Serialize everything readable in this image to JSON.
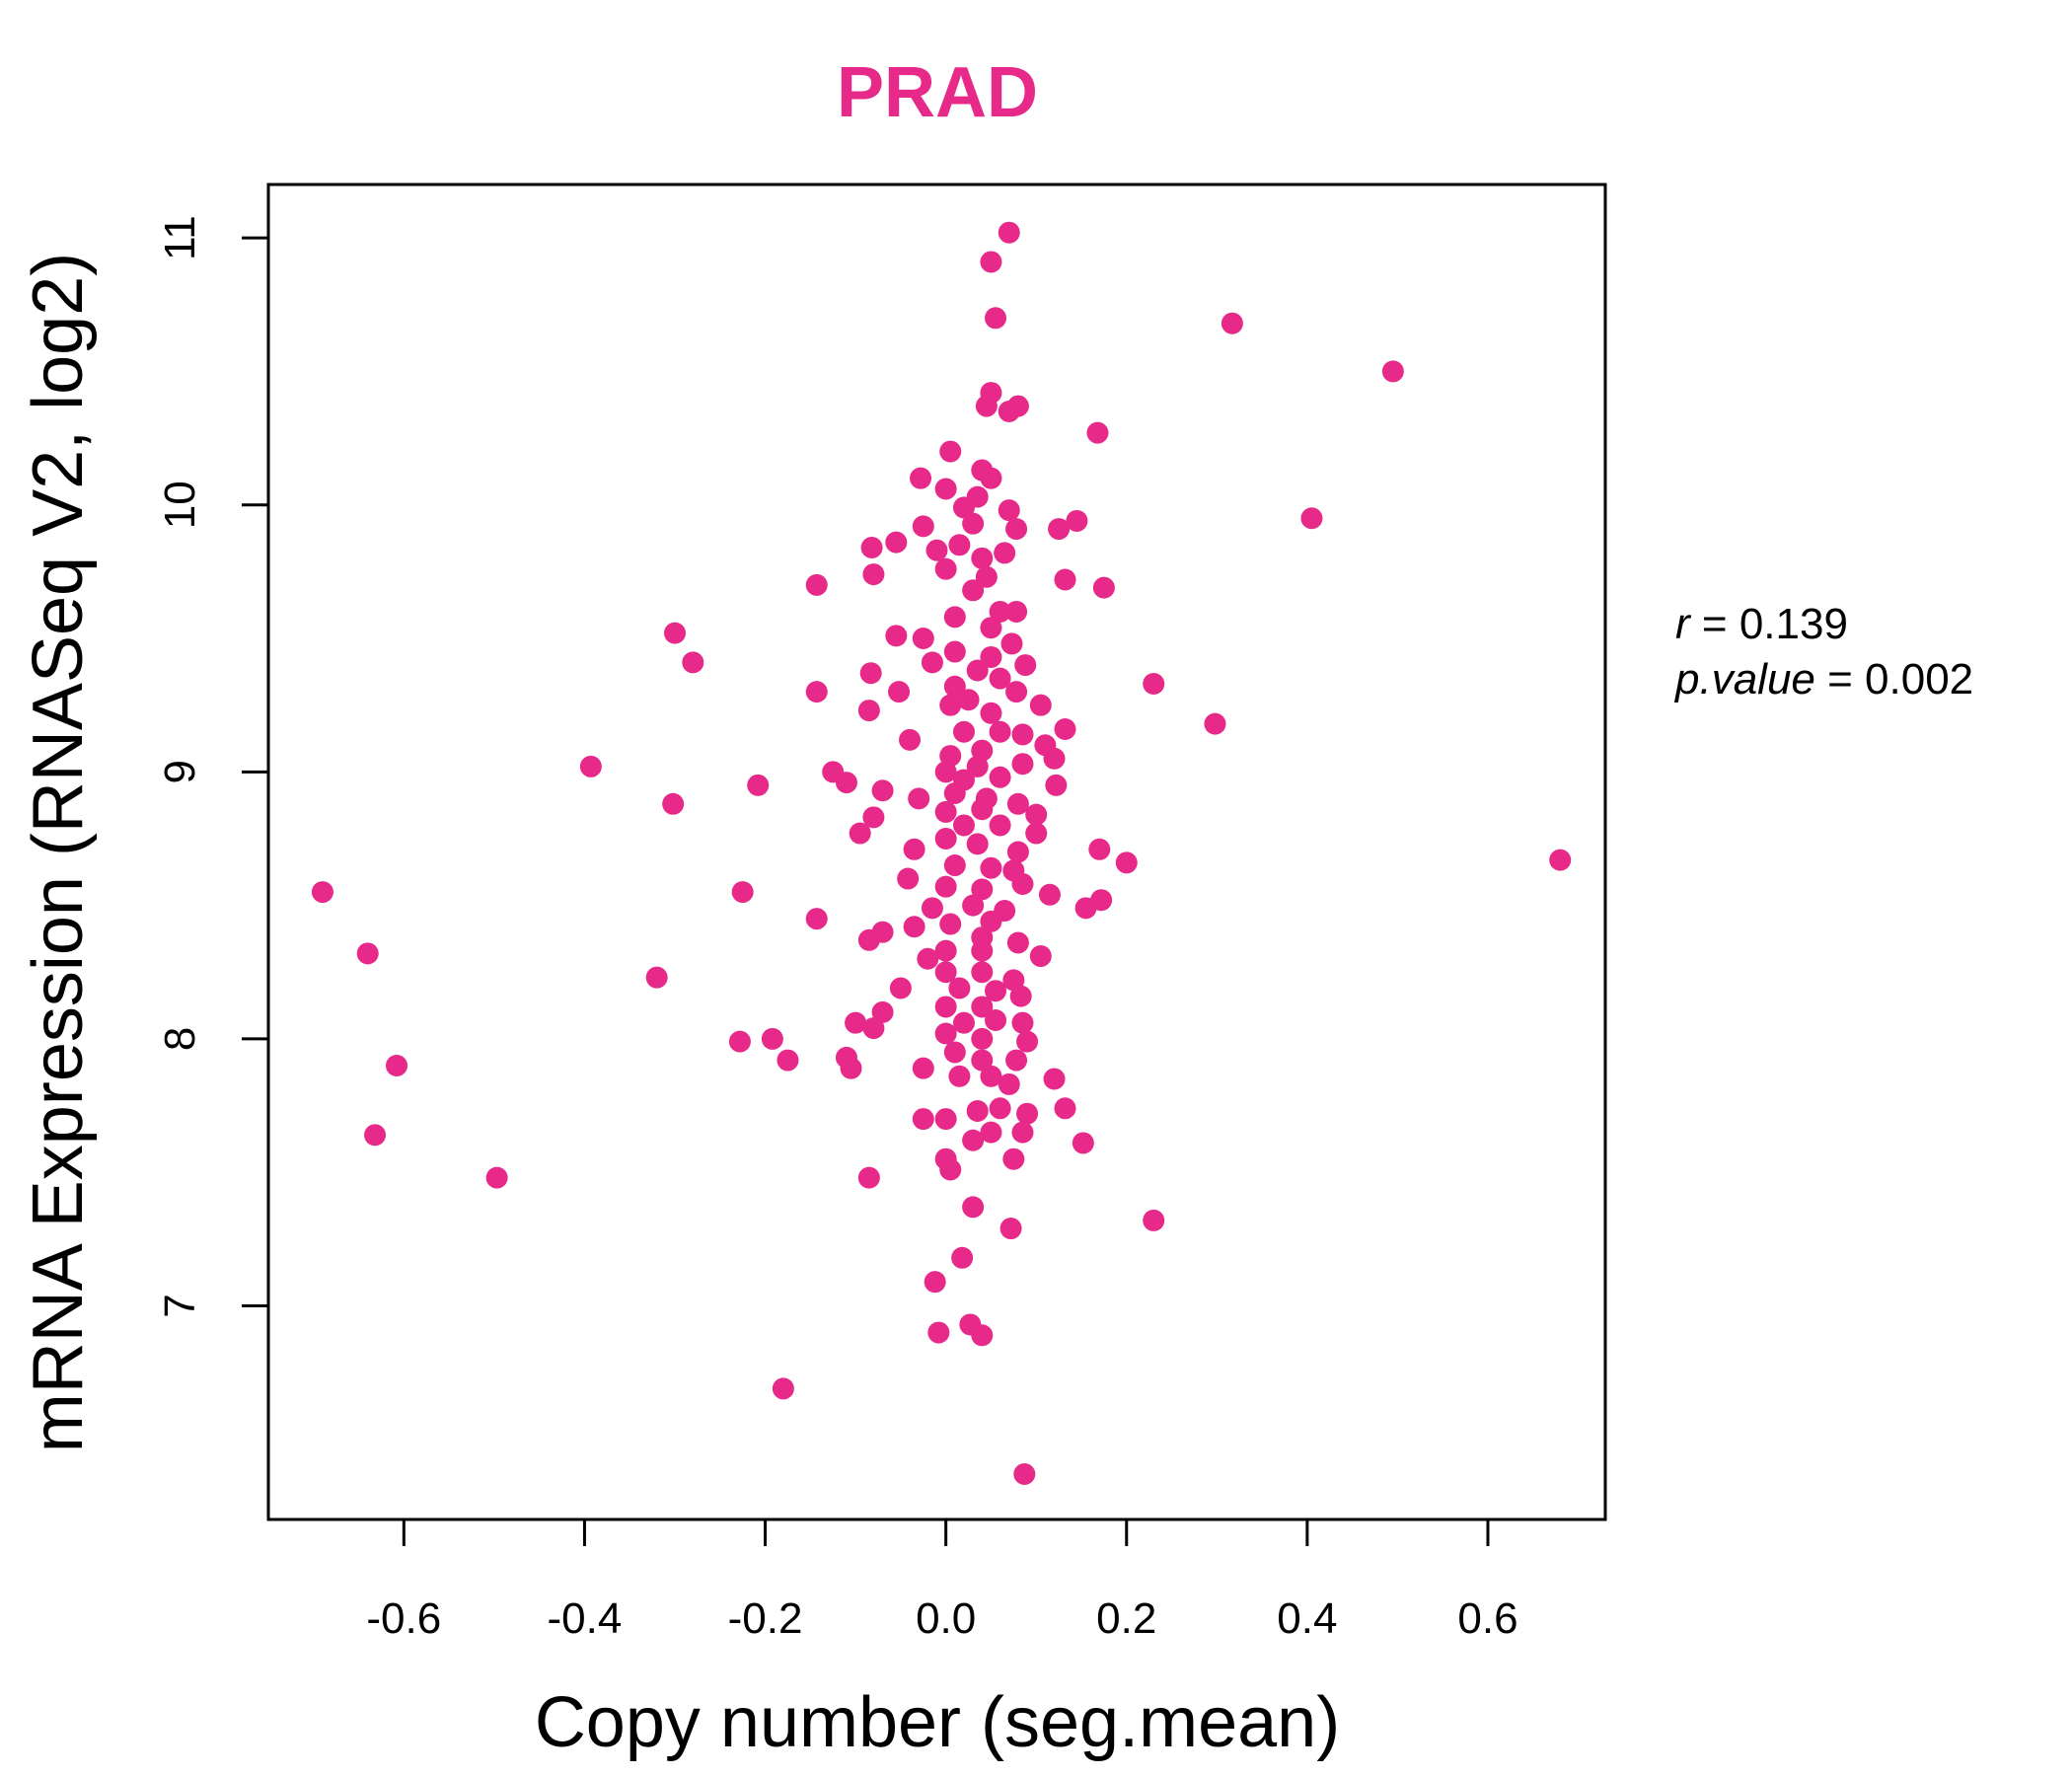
{
  "chart_data": {
    "type": "scatter",
    "title": "PRAD",
    "xlabel": "Copy number (seg.mean)",
    "ylabel": "mRNA Expression (RNASeq V2, log2)",
    "xlim": [
      -0.75,
      0.73
    ],
    "ylim": [
      6.2,
      11.2
    ],
    "xticks": [
      -0.6,
      -0.4,
      -0.2,
      0.0,
      0.2,
      0.4,
      0.6
    ],
    "xtick_labels": [
      "-0.6",
      "-0.4",
      "-0.2",
      "0.0",
      "0.2",
      "0.4",
      "0.6"
    ],
    "yticks": [
      7,
      8,
      9,
      10,
      11
    ],
    "ytick_labels": [
      "7",
      "8",
      "9",
      "10",
      "11"
    ],
    "grid": false,
    "point_color": "#E7298A",
    "stats": {
      "r_label": "r",
      "r_value": "0.139",
      "p_label": "p.value",
      "p_value": "0.002"
    },
    "series": [
      {
        "points": [
          [
            0.07,
            11.02
          ],
          [
            0.05,
            10.91
          ],
          [
            0.055,
            10.7
          ],
          [
            0.317,
            10.68
          ],
          [
            0.495,
            10.5
          ],
          [
            0.05,
            10.42
          ],
          [
            0.045,
            10.37
          ],
          [
            0.08,
            10.37
          ],
          [
            0.07,
            10.35
          ],
          [
            0.168,
            10.27
          ],
          [
            0.005,
            10.2
          ],
          [
            0.04,
            10.13
          ],
          [
            -0.028,
            10.1
          ],
          [
            0.05,
            10.1
          ],
          [
            0.0,
            10.06
          ],
          [
            0.035,
            10.03
          ],
          [
            0.02,
            9.99
          ],
          [
            0.07,
            9.98
          ],
          [
            0.405,
            9.95
          ],
          [
            0.145,
            9.94
          ],
          [
            -0.025,
            9.92
          ],
          [
            0.03,
            9.93
          ],
          [
            0.078,
            9.91
          ],
          [
            0.125,
            9.91
          ],
          [
            -0.055,
            9.86
          ],
          [
            -0.082,
            9.84
          ],
          [
            -0.01,
            9.83
          ],
          [
            0.015,
            9.85
          ],
          [
            0.065,
            9.82
          ],
          [
            0.04,
            9.8
          ],
          [
            -0.08,
            9.74
          ],
          [
            0.0,
            9.76
          ],
          [
            0.045,
            9.73
          ],
          [
            0.132,
            9.72
          ],
          [
            0.175,
            9.69
          ],
          [
            -0.143,
            9.7
          ],
          [
            0.03,
            9.68
          ],
          [
            0.06,
            9.6
          ],
          [
            0.078,
            9.6
          ],
          [
            0.01,
            9.58
          ],
          [
            0.05,
            9.54
          ],
          [
            -0.3,
            9.52
          ],
          [
            -0.055,
            9.51
          ],
          [
            -0.025,
            9.5
          ],
          [
            0.073,
            9.48
          ],
          [
            0.01,
            9.45
          ],
          [
            0.05,
            9.43
          ],
          [
            0.088,
            9.4
          ],
          [
            -0.28,
            9.41
          ],
          [
            -0.015,
            9.41
          ],
          [
            -0.083,
            9.37
          ],
          [
            0.035,
            9.38
          ],
          [
            0.06,
            9.35
          ],
          [
            0.23,
            9.33
          ],
          [
            -0.143,
            9.3
          ],
          [
            -0.052,
            9.3
          ],
          [
            0.01,
            9.32
          ],
          [
            0.078,
            9.3
          ],
          [
            0.025,
            9.27
          ],
          [
            0.105,
            9.25
          ],
          [
            -0.085,
            9.23
          ],
          [
            0.005,
            9.25
          ],
          [
            0.05,
            9.22
          ],
          [
            0.298,
            9.18
          ],
          [
            -0.04,
            9.12
          ],
          [
            0.02,
            9.15
          ],
          [
            0.06,
            9.15
          ],
          [
            0.132,
            9.16
          ],
          [
            0.085,
            9.14
          ],
          [
            0.11,
            9.1
          ],
          [
            0.005,
            9.06
          ],
          [
            0.04,
            9.08
          ],
          [
            0.12,
            9.05
          ],
          [
            -0.393,
            9.02
          ],
          [
            -0.125,
            9.0
          ],
          [
            0.0,
            9.0
          ],
          [
            0.035,
            9.02
          ],
          [
            0.085,
            9.03
          ],
          [
            -0.208,
            8.95
          ],
          [
            -0.11,
            8.96
          ],
          [
            -0.07,
            8.93
          ],
          [
            0.02,
            8.97
          ],
          [
            0.06,
            8.98
          ],
          [
            0.122,
            8.95
          ],
          [
            -0.302,
            8.88
          ],
          [
            -0.03,
            8.9
          ],
          [
            0.01,
            8.92
          ],
          [
            0.045,
            8.9
          ],
          [
            0.08,
            8.88
          ],
          [
            -0.08,
            8.83
          ],
          [
            0.0,
            8.85
          ],
          [
            0.04,
            8.86
          ],
          [
            0.1,
            8.84
          ],
          [
            -0.095,
            8.77
          ],
          [
            0.02,
            8.8
          ],
          [
            0.06,
            8.8
          ],
          [
            0.1,
            8.77
          ],
          [
            -0.035,
            8.71
          ],
          [
            0.0,
            8.75
          ],
          [
            0.035,
            8.73
          ],
          [
            0.17,
            8.71
          ],
          [
            0.08,
            8.7
          ],
          [
            -0.042,
            8.6
          ],
          [
            0.01,
            8.65
          ],
          [
            0.05,
            8.64
          ],
          [
            0.075,
            8.63
          ],
          [
            0.2,
            8.66
          ],
          [
            0.68,
            8.67
          ],
          [
            -0.69,
            8.55
          ],
          [
            -0.225,
            8.55
          ],
          [
            0.0,
            8.57
          ],
          [
            0.04,
            8.56
          ],
          [
            0.085,
            8.58
          ],
          [
            0.115,
            8.54
          ],
          [
            0.172,
            8.52
          ],
          [
            0.155,
            8.49
          ],
          [
            -0.015,
            8.49
          ],
          [
            0.03,
            8.5
          ],
          [
            0.065,
            8.48
          ],
          [
            -0.143,
            8.45
          ],
          [
            -0.035,
            8.42
          ],
          [
            0.005,
            8.43
          ],
          [
            0.05,
            8.44
          ],
          [
            -0.07,
            8.4
          ],
          [
            -0.085,
            8.37
          ],
          [
            0.04,
            8.38
          ],
          [
            0.08,
            8.36
          ],
          [
            -0.64,
            8.32
          ],
          [
            0.0,
            8.33
          ],
          [
            0.04,
            8.33
          ],
          [
            0.105,
            8.31
          ],
          [
            -0.02,
            8.3
          ],
          [
            -0.32,
            8.23
          ],
          [
            0.0,
            8.25
          ],
          [
            0.04,
            8.25
          ],
          [
            0.075,
            8.22
          ],
          [
            -0.05,
            8.19
          ],
          [
            0.015,
            8.19
          ],
          [
            0.055,
            8.18
          ],
          [
            0.083,
            8.16
          ],
          [
            -0.07,
            8.1
          ],
          [
            0.0,
            8.12
          ],
          [
            0.04,
            8.12
          ],
          [
            -0.1,
            8.06
          ],
          [
            0.02,
            8.06
          ],
          [
            0.055,
            8.07
          ],
          [
            0.085,
            8.06
          ],
          [
            -0.08,
            8.04
          ],
          [
            -0.192,
            8.0
          ],
          [
            -0.228,
            7.99
          ],
          [
            0.0,
            8.02
          ],
          [
            0.04,
            8.0
          ],
          [
            0.09,
            7.99
          ],
          [
            -0.608,
            7.9
          ],
          [
            -0.175,
            7.92
          ],
          [
            -0.11,
            7.93
          ],
          [
            -0.105,
            7.89
          ],
          [
            -0.025,
            7.89
          ],
          [
            0.01,
            7.95
          ],
          [
            0.04,
            7.92
          ],
          [
            0.078,
            7.92
          ],
          [
            0.015,
            7.86
          ],
          [
            0.05,
            7.86
          ],
          [
            0.12,
            7.85
          ],
          [
            0.07,
            7.83
          ],
          [
            -0.025,
            7.7
          ],
          [
            0.0,
            7.7
          ],
          [
            0.035,
            7.73
          ],
          [
            0.06,
            7.74
          ],
          [
            0.09,
            7.72
          ],
          [
            0.132,
            7.74
          ],
          [
            -0.632,
            7.64
          ],
          [
            0.03,
            7.62
          ],
          [
            0.05,
            7.65
          ],
          [
            0.085,
            7.65
          ],
          [
            0.152,
            7.61
          ],
          [
            0.0,
            7.55
          ],
          [
            0.075,
            7.55
          ],
          [
            0.005,
            7.51
          ],
          [
            -0.497,
            7.48
          ],
          [
            -0.085,
            7.48
          ],
          [
            0.03,
            7.37
          ],
          [
            0.23,
            7.32
          ],
          [
            0.072,
            7.29
          ],
          [
            0.018,
            7.18
          ],
          [
            -0.012,
            7.09
          ],
          [
            0.027,
            6.93
          ],
          [
            -0.008,
            6.9
          ],
          [
            0.04,
            6.89
          ],
          [
            -0.18,
            6.69
          ],
          [
            0.087,
            6.37
          ]
        ]
      }
    ]
  }
}
